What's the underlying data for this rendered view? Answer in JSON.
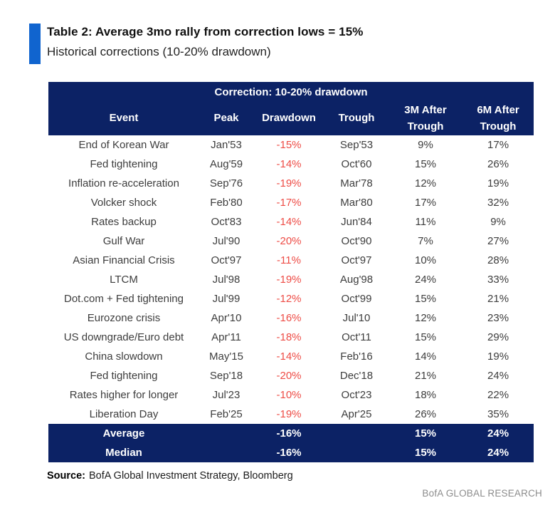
{
  "colors": {
    "navy": "#0c2265",
    "accent_blue": "#1064cf",
    "drawdown_red": "#ee4c46",
    "body_text": "#3d3d3d",
    "brand_gray": "#8c8c8c"
  },
  "chart_data": {
    "type": "table",
    "title": "Table 2: Average 3mo rally from correction lows = 15%",
    "subtitle": "Historical corrections (10-20% drawdown)",
    "group_header": "Correction: 10-20% drawdown",
    "columns": [
      "Event",
      "Peak",
      "Drawdown",
      "Trough",
      "3M After Trough",
      "6M After Trough"
    ],
    "rows": [
      [
        "End of Korean War",
        "Jan'53",
        "-15%",
        "Sep'53",
        "9%",
        "17%"
      ],
      [
        "Fed tightening",
        "Aug'59",
        "-14%",
        "Oct'60",
        "15%",
        "26%"
      ],
      [
        "Inflation re-acceleration",
        "Sep'76",
        "-19%",
        "Mar'78",
        "12%",
        "19%"
      ],
      [
        "Volcker shock",
        "Feb'80",
        "-17%",
        "Mar'80",
        "17%",
        "32%"
      ],
      [
        "Rates backup",
        "Oct'83",
        "-14%",
        "Jun'84",
        "11%",
        "9%"
      ],
      [
        "Gulf War",
        "Jul'90",
        "-20%",
        "Oct'90",
        "7%",
        "27%"
      ],
      [
        "Asian Financial Crisis",
        "Oct'97",
        "-11%",
        "Oct'97",
        "10%",
        "28%"
      ],
      [
        "LTCM",
        "Jul'98",
        "-19%",
        "Aug'98",
        "24%",
        "33%"
      ],
      [
        "Dot.com + Fed tightening",
        "Jul'99",
        "-12%",
        "Oct'99",
        "15%",
        "21%"
      ],
      [
        "Eurozone crisis",
        "Apr'10",
        "-16%",
        "Jul'10",
        "12%",
        "23%"
      ],
      [
        "US downgrade/Euro debt",
        "Apr'11",
        "-18%",
        "Oct'11",
        "15%",
        "29%"
      ],
      [
        "China slowdown",
        "May'15",
        "-14%",
        "Feb'16",
        "14%",
        "19%"
      ],
      [
        "Fed tightening",
        "Sep'18",
        "-20%",
        "Dec'18",
        "21%",
        "24%"
      ],
      [
        "Rates higher for longer",
        "Jul'23",
        "-10%",
        "Oct'23",
        "18%",
        "22%"
      ],
      [
        "Liberation Day",
        "Feb'25",
        "-19%",
        "Apr'25",
        "26%",
        "35%"
      ]
    ],
    "summary_rows": [
      [
        "Average",
        "",
        "-16%",
        "",
        "15%",
        "24%"
      ],
      [
        "Median",
        "",
        "-16%",
        "",
        "15%",
        "24%"
      ]
    ]
  },
  "footer": {
    "source_label": "Source:",
    "source_text": "BofA Global Investment Strategy, Bloomberg",
    "brand": "BofA GLOBAL RESEARCH"
  }
}
